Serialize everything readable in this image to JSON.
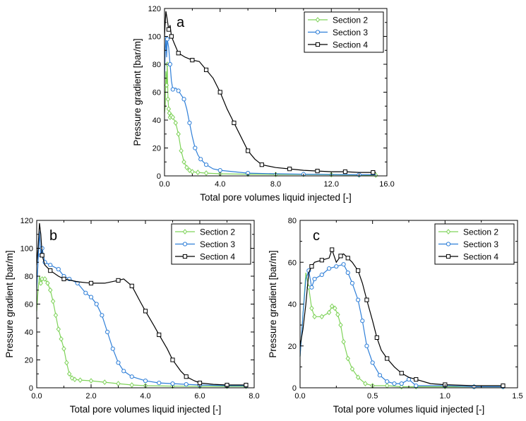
{
  "chart_data": [
    {
      "type": "line",
      "panel_label": "a",
      "xlabel": "Total pore volumes liquid injected [-]",
      "ylabel": "Pressure gradient [bar/m]",
      "xlim": [
        0,
        16
      ],
      "ylim": [
        0,
        120
      ],
      "xticks": [
        0,
        4,
        8,
        12,
        16
      ],
      "xtick_labels": [
        "0.0",
        "4.0",
        "8.0",
        "12.0",
        "16.0"
      ],
      "yticks": [
        0,
        20,
        40,
        60,
        80,
        100,
        120
      ],
      "ytick_labels": [
        "0",
        "20",
        "40",
        "60",
        "80",
        "100",
        "120"
      ],
      "legend": [
        "Section 2",
        "Section 3",
        "Section 4"
      ],
      "series": [
        {
          "name": "Section 2",
          "color": "#7fd35a",
          "x": [
            0,
            0.05,
            0.1,
            0.15,
            0.2,
            0.25,
            0.3,
            0.35,
            0.4,
            0.5,
            0.6,
            0.8,
            1.0,
            1.2,
            1.4,
            1.6,
            1.8,
            2.0,
            2.4,
            3.0,
            4.0,
            6.0,
            8.0,
            10.0,
            12.0,
            14.0,
            15.2
          ],
          "y": [
            45,
            50,
            75,
            65,
            80,
            55,
            48,
            45,
            42,
            43,
            42,
            38,
            30,
            18,
            10,
            6,
            4,
            3,
            2.5,
            2,
            1.5,
            1.2,
            1,
            1,
            0.8,
            0.6,
            0.5
          ]
        },
        {
          "name": "Section 3",
          "color": "#2f7fd8",
          "x": [
            0,
            0.05,
            0.1,
            0.15,
            0.2,
            0.3,
            0.4,
            0.5,
            0.6,
            0.8,
            1.0,
            1.2,
            1.4,
            1.6,
            1.8,
            2.0,
            2.2,
            2.4,
            2.6,
            2.8,
            3.0,
            3.5,
            4.0,
            5.0,
            6.0,
            8.0,
            10.0,
            12.0,
            14.0,
            15.2
          ],
          "y": [
            70,
            90,
            100,
            85,
            98,
            92,
            80,
            68,
            62,
            63,
            61,
            58,
            55,
            48,
            38,
            28,
            20,
            15,
            12,
            10,
            8,
            5,
            4,
            3,
            2,
            1.5,
            1.2,
            1.0,
            0.8,
            0.8
          ]
        },
        {
          "name": "Section 4",
          "color": "#000000",
          "x": [
            0,
            0.05,
            0.1,
            0.2,
            0.3,
            0.4,
            0.5,
            0.7,
            1.0,
            1.5,
            2.0,
            2.5,
            3.0,
            3.5,
            4.0,
            4.5,
            5.0,
            5.5,
            6.0,
            6.5,
            7.0,
            8.0,
            9.0,
            10.0,
            11.0,
            12.0,
            13.0,
            14.0,
            15.0,
            15.2
          ],
          "y": [
            100,
            110,
            118,
            112,
            105,
            108,
            100,
            95,
            88,
            85,
            83,
            82,
            76,
            70,
            60,
            48,
            38,
            28,
            18,
            12,
            8,
            6,
            5,
            4,
            3.5,
            3,
            3,
            2.5,
            2.5,
            2.5
          ]
        }
      ]
    },
    {
      "type": "line",
      "panel_label": "b",
      "xlabel": "Total pore volumes liquid injected [-]",
      "ylabel": "Pressure gradient [bar/m]",
      "xlim": [
        0,
        8
      ],
      "ylim": [
        0,
        120
      ],
      "xticks": [
        0,
        2,
        4,
        6,
        8
      ],
      "xtick_labels": [
        "0.0",
        "2.0",
        "4.0",
        "6.0",
        "8.0"
      ],
      "yticks": [
        0,
        20,
        40,
        60,
        80,
        100,
        120
      ],
      "ytick_labels": [
        "0",
        "20",
        "40",
        "60",
        "80",
        "100",
        "120"
      ],
      "legend": [
        "Section 2",
        "Section 3",
        "Section 4"
      ],
      "series": [
        {
          "name": "Section 2",
          "color": "#7fd35a",
          "x": [
            0,
            0.05,
            0.1,
            0.15,
            0.2,
            0.3,
            0.4,
            0.5,
            0.6,
            0.7,
            0.8,
            0.9,
            1.0,
            1.1,
            1.2,
            1.3,
            1.4,
            1.6,
            2.0,
            2.5,
            3.0,
            3.5,
            4.0,
            5.0,
            6.0,
            7.0,
            7.7
          ],
          "y": [
            55,
            70,
            80,
            75,
            78,
            78,
            75,
            70,
            62,
            52,
            42,
            35,
            28,
            18,
            10,
            7,
            6,
            5.5,
            5,
            4,
            3,
            2,
            1.5,
            1.2,
            1,
            1,
            1
          ]
        },
        {
          "name": "Section 3",
          "color": "#2f7fd8",
          "x": [
            0,
            0.05,
            0.1,
            0.15,
            0.2,
            0.3,
            0.5,
            0.8,
            1.0,
            1.2,
            1.5,
            1.8,
            2.0,
            2.2,
            2.4,
            2.6,
            2.8,
            3.0,
            3.2,
            3.5,
            4.0,
            4.5,
            5.0,
            5.5,
            6.0,
            7.0,
            7.7
          ],
          "y": [
            70,
            90,
            112,
            95,
            100,
            90,
            88,
            85,
            80,
            78,
            75,
            68,
            65,
            60,
            52,
            40,
            28,
            18,
            12,
            8,
            5,
            3.5,
            3,
            2.5,
            2,
            1.5,
            1.5
          ]
        },
        {
          "name": "Section 4",
          "color": "#000000",
          "x": [
            0,
            0.05,
            0.1,
            0.15,
            0.2,
            0.3,
            0.5,
            0.8,
            1.0,
            1.5,
            2.0,
            2.5,
            3.0,
            3.2,
            3.5,
            3.8,
            4.0,
            4.3,
            4.5,
            4.8,
            5.0,
            5.3,
            5.5,
            5.8,
            6.0,
            6.5,
            7.0,
            7.5,
            7.7
          ],
          "y": [
            88,
            100,
            118,
            110,
            95,
            88,
            84,
            80,
            78,
            76,
            75,
            75,
            77,
            78,
            73,
            62,
            55,
            45,
            38,
            28,
            20,
            12,
            8,
            5,
            3.5,
            2.5,
            2,
            2,
            2
          ]
        }
      ]
    },
    {
      "type": "line",
      "panel_label": "c",
      "xlabel": "Total pore volumes liquid injected [-]",
      "ylabel": "Pressure gradient [bar/m]",
      "xlim": [
        0,
        1.5
      ],
      "ylim": [
        0,
        80
      ],
      "xticks": [
        0,
        0.5,
        1.0,
        1.5
      ],
      "xtick_labels": [
        "0.0",
        "0.5",
        "1.0",
        "1.5"
      ],
      "yticks": [
        0,
        20,
        40,
        60,
        80
      ],
      "ytick_labels": [
        "0",
        "20",
        "40",
        "60",
        "80"
      ],
      "legend": [
        "Section 2",
        "Section 3",
        "Section 4"
      ],
      "series": [
        {
          "name": "Section 2",
          "color": "#7fd35a",
          "x": [
            0,
            0.02,
            0.04,
            0.06,
            0.08,
            0.1,
            0.15,
            0.2,
            0.22,
            0.24,
            0.26,
            0.28,
            0.3,
            0.33,
            0.36,
            0.4,
            0.45,
            0.5,
            0.6,
            0.7,
            0.8,
            1.0,
            1.2,
            1.4
          ],
          "y": [
            15,
            35,
            55,
            48,
            38,
            34,
            34,
            36,
            39,
            38,
            35,
            30,
            22,
            14,
            9,
            5,
            2,
            1,
            1,
            0.5,
            0.5,
            0.5,
            0.5,
            0.5
          ]
        },
        {
          "name": "Section 3",
          "color": "#2f7fd8",
          "x": [
            0,
            0.02,
            0.04,
            0.06,
            0.08,
            0.1,
            0.15,
            0.2,
            0.25,
            0.3,
            0.33,
            0.36,
            0.4,
            0.43,
            0.46,
            0.5,
            0.55,
            0.6,
            0.65,
            0.7,
            0.75,
            0.8,
            1.0,
            1.2,
            1.4
          ],
          "y": [
            15,
            35,
            52,
            56,
            48,
            52,
            54,
            57,
            58,
            59,
            55,
            50,
            42,
            32,
            20,
            12,
            6,
            3,
            2,
            2,
            4,
            1,
            1,
            0.5,
            0.5
          ]
        },
        {
          "name": "Section 4",
          "color": "#000000",
          "x": [
            0,
            0.02,
            0.04,
            0.06,
            0.08,
            0.1,
            0.15,
            0.2,
            0.22,
            0.25,
            0.28,
            0.3,
            0.33,
            0.36,
            0.4,
            0.43,
            0.46,
            0.5,
            0.53,
            0.56,
            0.6,
            0.65,
            0.7,
            0.75,
            0.8,
            0.9,
            1.0,
            1.2,
            1.4
          ],
          "y": [
            20,
            28,
            40,
            55,
            58,
            60,
            61,
            62,
            66,
            60,
            63,
            64,
            62,
            60,
            56,
            50,
            42,
            32,
            24,
            18,
            14,
            10,
            7,
            5,
            4,
            2,
            1.5,
            1,
            1
          ]
        }
      ]
    }
  ]
}
